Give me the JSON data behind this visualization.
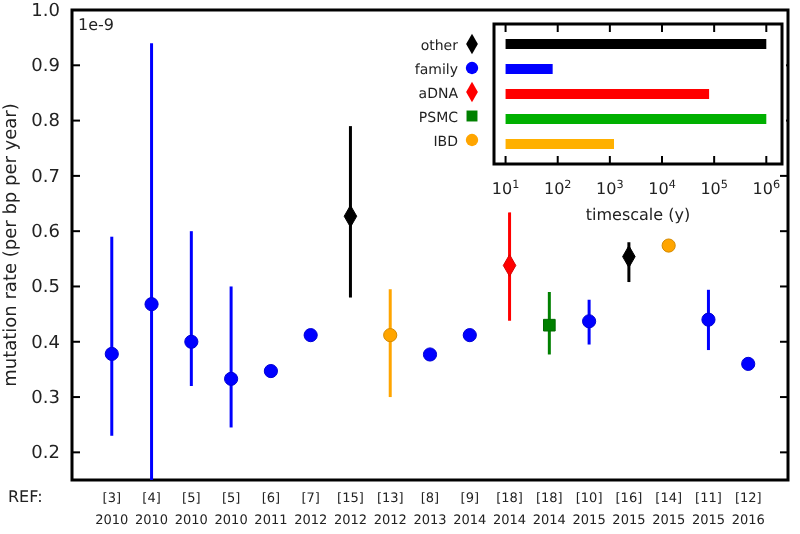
{
  "chart_data": [
    {
      "type": "scatter",
      "ylabel": "mutation rate (per bp per year)",
      "annotations": [
        "1e-9",
        "REF:"
      ],
      "categories": [
        "[3]\n2010",
        "[4]\n2010",
        "[5]\n2010",
        "[5]\n2010",
        "[6]\n2011",
        "[7]\n2012",
        "[15]\n2012",
        "[13]\n2012",
        "[8]\n2013",
        "[9]\n2014",
        "[18]\n2014",
        "[18]\n2014",
        "[10]\n2015",
        "[16]\n2015",
        "[14]\n2015",
        "[11]\n2015",
        "[12]\n2016"
      ],
      "ylim": [
        0.15,
        1.0
      ],
      "yticks": [
        0.2,
        0.3,
        0.4,
        0.5,
        0.6,
        0.7,
        0.8,
        0.9,
        {
          "value": 1.0,
          "label": "1.0"
        }
      ],
      "grid": false,
      "legend": "top right",
      "series": [
        {
          "name": "other",
          "color": "#000000",
          "marker": "diamond",
          "values": [
            null,
            null,
            null,
            null,
            null,
            null,
            0.627,
            null,
            null,
            null,
            null,
            null,
            null,
            0.554,
            null,
            null,
            null
          ],
          "errors": [
            null,
            null,
            null,
            null,
            null,
            null,
            [
              0.48,
              0.79
            ],
            null,
            null,
            null,
            null,
            null,
            null,
            [
              0.508,
              0.58
            ],
            null,
            null,
            null
          ]
        },
        {
          "name": "family",
          "color": "#0000ff",
          "marker": "circle",
          "values": [
            0.378,
            0.468,
            0.4,
            0.333,
            0.347,
            0.412,
            null,
            null,
            0.377,
            0.412,
            null,
            null,
            0.437,
            null,
            null,
            0.44,
            0.36
          ],
          "errors": [
            [
              0.23,
              0.59
            ],
            [
              0.15,
              0.94
            ],
            [
              0.32,
              0.6
            ],
            [
              0.245,
              0.5
            ],
            null,
            null,
            null,
            null,
            null,
            null,
            null,
            null,
            [
              0.395,
              0.476
            ],
            null,
            null,
            [
              0.385,
              0.494
            ],
            null
          ]
        },
        {
          "name": "aDNA",
          "color": "#ff0000",
          "marker": "diamond",
          "values": [
            null,
            null,
            null,
            null,
            null,
            null,
            null,
            null,
            null,
            null,
            0.538,
            null,
            null,
            null,
            null,
            null,
            null
          ],
          "errors": [
            null,
            null,
            null,
            null,
            null,
            null,
            null,
            null,
            null,
            null,
            [
              0.438,
              0.634
            ],
            null,
            null,
            null,
            null,
            null,
            null
          ]
        },
        {
          "name": "PSMC",
          "color": "#008000",
          "marker": "square",
          "values": [
            null,
            null,
            null,
            null,
            null,
            null,
            null,
            null,
            null,
            null,
            null,
            0.43,
            null,
            null,
            null,
            null,
            null
          ],
          "errors": [
            null,
            null,
            null,
            null,
            null,
            null,
            null,
            null,
            null,
            null,
            null,
            [
              0.377,
              0.49
            ],
            null,
            null,
            null,
            null,
            null
          ]
        },
        {
          "name": "IBD",
          "color": "#ffa500",
          "marker": "circle",
          "values": [
            null,
            null,
            null,
            null,
            null,
            null,
            null,
            0.412,
            null,
            null,
            null,
            null,
            null,
            null,
            0.574,
            null,
            null
          ],
          "errors": [
            null,
            null,
            null,
            null,
            null,
            null,
            null,
            [
              0.3,
              0.495
            ],
            null,
            null,
            null,
            null,
            null,
            null,
            [
              0.567,
              0.581
            ],
            null,
            null
          ]
        }
      ]
    },
    {
      "type": "bar",
      "orientation": "horizontal",
      "log": "x",
      "xlabel": "timescale (y)",
      "tick_labels": "x",
      "categories": [
        null,
        null,
        null,
        null,
        null
      ],
      "base": [
        10,
        10,
        10,
        10,
        10
      ],
      "values": [
        999990,
        70,
        79990,
        999990,
        1190
      ],
      "colors": [
        "#000000",
        "#0000ff",
        "#ff0000",
        "#00b000",
        "#ffb000"
      ],
      "xlim": [
        6,
        2000000
      ],
      "xticks": [
        {
          "value": 10,
          "label": "10$^{1}$"
        },
        {
          "value": 100,
          "label": "10$^{2}$"
        },
        {
          "value": 1000,
          "label": "10$^{3}$"
        },
        {
          "value": 10000,
          "label": "10$^{4}$"
        },
        {
          "value": 100000,
          "label": "10$^{5}$"
        },
        {
          "value": 1000000,
          "label": "10$^{6}$"
        }
      ]
    }
  ]
}
